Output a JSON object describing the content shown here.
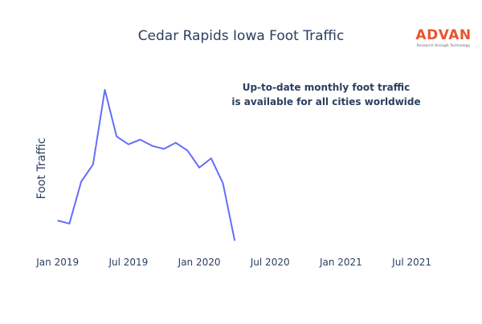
{
  "chart_data": {
    "type": "line",
    "title": "Cedar Rapids Iowa Foot Traffic",
    "ylabel": "Foot Traffic",
    "xlabel": "",
    "annotation": {
      "line1": "Up-to-date monthly foot traffic",
      "line2": "is available for all cities worldwide"
    },
    "logo": {
      "name": "ADVAN",
      "tagline": "Research through Technology"
    },
    "x_tick_labels": [
      "Jan 2019",
      "Jul 2019",
      "Jan 2020",
      "Jul 2020",
      "Jan 2021",
      "Jul 2021"
    ],
    "x_range": [
      "2018-12",
      "2021-09"
    ],
    "y_range": [
      0,
      100
    ],
    "y_ticks_shown": false,
    "grid": false,
    "legend": "none",
    "series": [
      {
        "color": "#636efa",
        "x": [
          "2019-01",
          "2019-02",
          "2019-03",
          "2019-04",
          "2019-05",
          "2019-06",
          "2019-07",
          "2019-08",
          "2019-09",
          "2019-10",
          "2019-11",
          "2019-12",
          "2020-01",
          "2020-02",
          "2020-03",
          "2020-04"
        ],
        "values": [
          16,
          14,
          41,
          52,
          100,
          70,
          65,
          68,
          64,
          62,
          66,
          61,
          50,
          56,
          40,
          3
        ]
      }
    ]
  }
}
